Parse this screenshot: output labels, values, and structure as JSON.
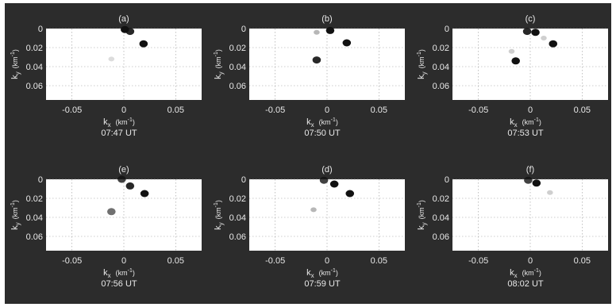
{
  "figure": {
    "background": "#2c2c2c",
    "plot_background": "#ffffff",
    "blob_color": "#111111"
  },
  "chart_data": [
    {
      "type": "scatter",
      "panel_label": "(a)",
      "time": "07:47 UT",
      "xlabel": "k",
      "xlabel_sub": "x",
      "ylabel": "k",
      "ylabel_sub": "y",
      "unit": "(km",
      "unit_sup": "-1",
      "unit_close": ")",
      "xlim": [
        -0.075,
        0.075
      ],
      "ylim": [
        0,
        0.075
      ],
      "xticks": [
        "-0.05",
        "0",
        "0.05"
      ],
      "yticks": [
        "0",
        "0.02",
        "0.04",
        "0.06"
      ],
      "grid": true,
      "points": [
        {
          "x": 0.001,
          "y": 0.001,
          "intensity": 1.0
        },
        {
          "x": 0.006,
          "y": 0.003,
          "intensity": 0.9
        },
        {
          "x": 0.019,
          "y": 0.016,
          "intensity": 1.0
        },
        {
          "x": -0.012,
          "y": 0.032,
          "intensity": 0.15
        }
      ]
    },
    {
      "type": "scatter",
      "panel_label": "(b)",
      "time": "07:50 UT",
      "xlabel": "k",
      "xlabel_sub": "x",
      "ylabel": "k",
      "ylabel_sub": "y",
      "unit": "(km",
      "unit_sup": "-1",
      "unit_close": ")",
      "xlim": [
        -0.075,
        0.075
      ],
      "ylim": [
        0,
        0.075
      ],
      "xticks": [
        "-0.05",
        "0",
        "0.05"
      ],
      "yticks": [
        "0",
        "0.02",
        "0.04",
        "0.06"
      ],
      "grid": true,
      "points": [
        {
          "x": 0.003,
          "y": 0.002,
          "intensity": 1.0
        },
        {
          "x": -0.01,
          "y": 0.004,
          "intensity": 0.3
        },
        {
          "x": 0.019,
          "y": 0.015,
          "intensity": 1.0
        },
        {
          "x": -0.01,
          "y": 0.033,
          "intensity": 0.9
        }
      ]
    },
    {
      "type": "scatter",
      "panel_label": "(c)",
      "time": "07:53 UT",
      "xlabel": "k",
      "xlabel_sub": "x",
      "ylabel": "k",
      "ylabel_sub": "y",
      "unit": "(km",
      "unit_sup": "-1",
      "unit_close": ")",
      "xlim": [
        -0.075,
        0.075
      ],
      "ylim": [
        0,
        0.075
      ],
      "xticks": [
        "-0.05",
        "0",
        "0.05"
      ],
      "yticks": [
        "0",
        "0.02",
        "0.04",
        "0.06"
      ],
      "grid": true,
      "points": [
        {
          "x": -0.003,
          "y": 0.003,
          "intensity": 0.9
        },
        {
          "x": 0.005,
          "y": 0.004,
          "intensity": 1.0
        },
        {
          "x": 0.022,
          "y": 0.016,
          "intensity": 1.0
        },
        {
          "x": -0.014,
          "y": 0.034,
          "intensity": 1.0
        },
        {
          "x": -0.018,
          "y": 0.024,
          "intensity": 0.2
        },
        {
          "x": 0.013,
          "y": 0.01,
          "intensity": 0.2
        }
      ]
    },
    {
      "type": "scatter",
      "panel_label": "(e)",
      "time": "07:56 UT",
      "xlabel": "k",
      "xlabel_sub": "x",
      "ylabel": "k",
      "ylabel_sub": "y",
      "unit": "(km",
      "unit_sup": "-1",
      "unit_close": ")",
      "xlim": [
        -0.075,
        0.075
      ],
      "ylim": [
        0,
        0.075
      ],
      "xticks": [
        "-0.05",
        "0",
        "0.05"
      ],
      "yticks": [
        "0",
        "0.02",
        "0.04",
        "0.06"
      ],
      "grid": true,
      "points": [
        {
          "x": -0.002,
          "y": 0.0,
          "intensity": 0.8
        },
        {
          "x": 0.006,
          "y": 0.007,
          "intensity": 0.9
        },
        {
          "x": 0.02,
          "y": 0.015,
          "intensity": 1.0
        },
        {
          "x": -0.012,
          "y": 0.034,
          "intensity": 0.6
        }
      ]
    },
    {
      "type": "scatter",
      "panel_label": "(d)",
      "time": "07:59 UT",
      "xlabel": "k",
      "xlabel_sub": "x",
      "ylabel": "k",
      "ylabel_sub": "y",
      "unit": "(km",
      "unit_sup": "-1",
      "unit_close": ")",
      "xlim": [
        -0.075,
        0.075
      ],
      "ylim": [
        0,
        0.075
      ],
      "xticks": [
        "-0.05",
        "0",
        "0.05"
      ],
      "yticks": [
        "0",
        "0.02",
        "0.04",
        "0.06"
      ],
      "grid": true,
      "points": [
        {
          "x": -0.003,
          "y": 0.001,
          "intensity": 0.8
        },
        {
          "x": 0.007,
          "y": 0.005,
          "intensity": 1.0
        },
        {
          "x": 0.022,
          "y": 0.015,
          "intensity": 1.0
        },
        {
          "x": -0.013,
          "y": 0.032,
          "intensity": 0.3
        }
      ]
    },
    {
      "type": "scatter",
      "panel_label": "(f)",
      "time": "08:02 UT",
      "xlabel": "k",
      "xlabel_sub": "x",
      "ylabel": "k",
      "ylabel_sub": "y",
      "unit": "(km",
      "unit_sup": "-1",
      "unit_close": ")",
      "xlim": [
        -0.075,
        0.075
      ],
      "ylim": [
        0,
        0.075
      ],
      "xticks": [
        "-0.05",
        "0",
        "0.05"
      ],
      "yticks": [
        "0",
        "0.02",
        "0.04",
        "0.06"
      ],
      "grid": true,
      "points": [
        {
          "x": -0.002,
          "y": 0.001,
          "intensity": 0.8
        },
        {
          "x": 0.006,
          "y": 0.004,
          "intensity": 1.0
        },
        {
          "x": 0.019,
          "y": 0.014,
          "intensity": 0.2
        }
      ]
    }
  ]
}
